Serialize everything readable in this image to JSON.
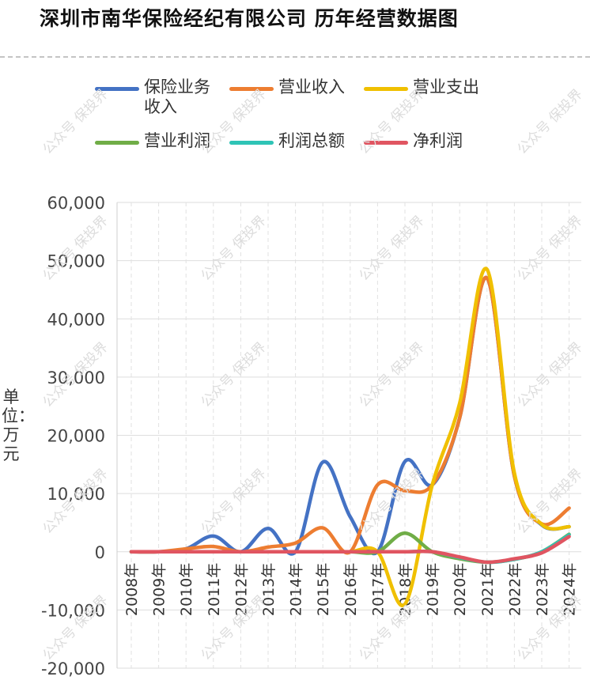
{
  "title": "深圳市南华保险经纪有限公司  历年经营数据图",
  "watermark": "公众号 保投界",
  "chart_data": {
    "type": "line",
    "title": "深圳市南华保险经纪有限公司  历年经营数据图",
    "xlabel": "",
    "ylabel": "单位：万元",
    "categories": [
      "2008年",
      "2009年",
      "2010年",
      "2011年",
      "2012年",
      "2013年",
      "2014年",
      "2015年",
      "2016年",
      "2017年",
      "2018年",
      "2019年",
      "2020年",
      "2021年",
      "2022年",
      "2023年",
      "2024年"
    ],
    "ylim": [
      -20000,
      60000
    ],
    "yticks": [
      -20000,
      -10000,
      0,
      10000,
      20000,
      30000,
      40000,
      50000,
      60000
    ],
    "ytick_labels": [
      "-20,000",
      "-10,000",
      "0",
      "10,000",
      "20,000",
      "30,000",
      "40,000",
      "50,000",
      "60,000"
    ],
    "grid": true,
    "legend_position": "top",
    "series": [
      {
        "name": "保险业务收入",
        "color": "#4472c4",
        "values": [
          0,
          0,
          500,
          2700,
          0,
          4000,
          0,
          15400,
          6000,
          0,
          15500,
          11500,
          23000,
          47000,
          13000,
          4600,
          4300
        ]
      },
      {
        "name": "营业收入",
        "color": "#ed7d31",
        "values": [
          0,
          0,
          500,
          900,
          0,
          800,
          1500,
          4100,
          0,
          11500,
          10500,
          11500,
          23000,
          47000,
          13000,
          4800,
          7500
        ]
      },
      {
        "name": "营业支出",
        "color": "#f0c000",
        "values": [
          0,
          0,
          0,
          0,
          0,
          0,
          0,
          0,
          0,
          0,
          -9000,
          11500,
          25500,
          48500,
          13500,
          4700,
          4300
        ]
      },
      {
        "name": "营业利润",
        "color": "#70ad47",
        "values": [
          0,
          0,
          0,
          0,
          0,
          0,
          0,
          0,
          0,
          0,
          3200,
          0,
          -1200,
          -1800,
          -1300,
          0,
          3000
        ]
      },
      {
        "name": "利润总额",
        "color": "#2ec4b6",
        "values": [
          0,
          0,
          0,
          0,
          0,
          0,
          0,
          0,
          0,
          0,
          0,
          0,
          -1000,
          -1800,
          -1300,
          0,
          2900
        ]
      },
      {
        "name": "净利润",
        "color": "#e05561",
        "values": [
          0,
          0,
          0,
          0,
          0,
          0,
          0,
          0,
          0,
          0,
          0,
          0,
          -900,
          -1800,
          -1200,
          -200,
          2600
        ]
      }
    ]
  }
}
